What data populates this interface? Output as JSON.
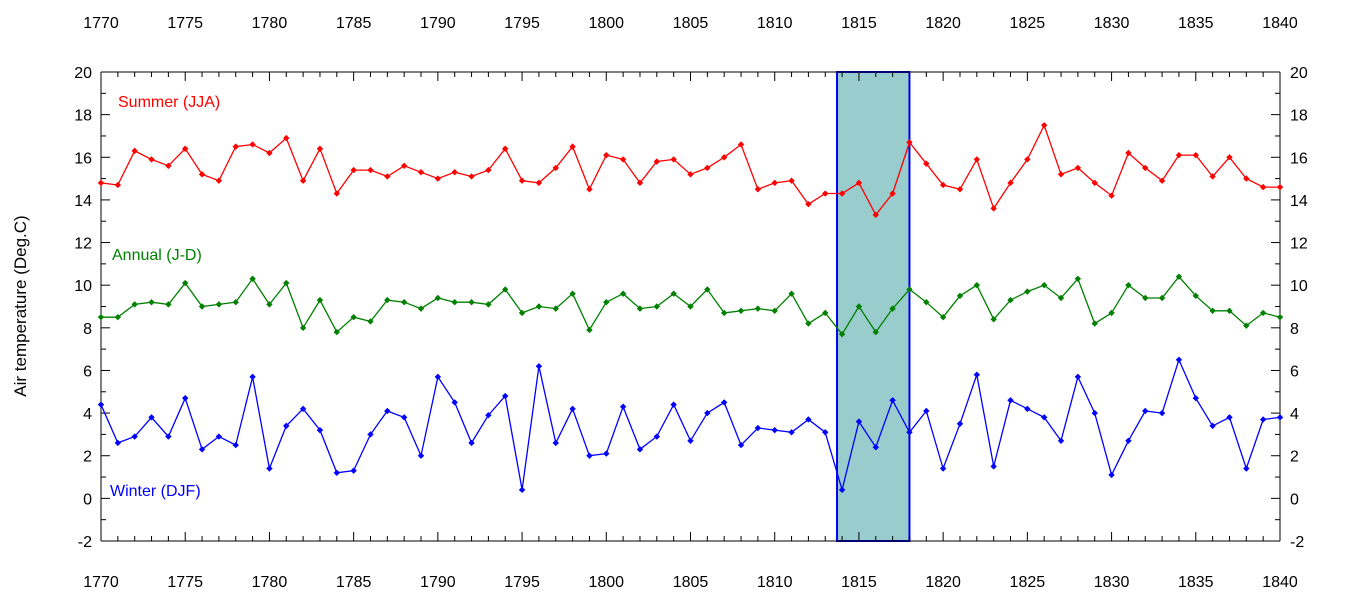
{
  "chart_data": {
    "type": "line",
    "title": "",
    "ylabel": "Air temperature (Deg.C)",
    "xlabel": "",
    "xlim": [
      1770,
      1840
    ],
    "ylim": [
      -2,
      20
    ],
    "x_ticks": [
      1770,
      1775,
      1780,
      1785,
      1790,
      1795,
      1800,
      1805,
      1810,
      1815,
      1820,
      1825,
      1830,
      1835,
      1840
    ],
    "y_ticks": [
      -2,
      0,
      2,
      4,
      6,
      8,
      10,
      12,
      14,
      16,
      18,
      20
    ],
    "highlight_band": {
      "x_start": 1813.7,
      "x_end": 1818.0,
      "fill": "#99cccc",
      "stroke": "#0000ee"
    },
    "x": [
      1770,
      1771,
      1772,
      1773,
      1774,
      1775,
      1776,
      1777,
      1778,
      1779,
      1780,
      1781,
      1782,
      1783,
      1784,
      1785,
      1786,
      1787,
      1788,
      1789,
      1790,
      1791,
      1792,
      1793,
      1794,
      1795,
      1796,
      1797,
      1798,
      1799,
      1800,
      1801,
      1802,
      1803,
      1804,
      1805,
      1806,
      1807,
      1808,
      1809,
      1810,
      1811,
      1812,
      1813,
      1814,
      1815,
      1816,
      1817,
      1818,
      1819,
      1820,
      1821,
      1822,
      1823,
      1824,
      1825,
      1826,
      1827,
      1828,
      1829,
      1830,
      1831,
      1832,
      1833,
      1834,
      1835,
      1836,
      1837,
      1838,
      1839,
      1840
    ],
    "series": [
      {
        "name": "Summer (JJA)",
        "color": "#ff0000",
        "values": [
          14.8,
          14.7,
          16.3,
          15.9,
          15.6,
          16.4,
          15.2,
          14.9,
          16.5,
          16.6,
          16.2,
          16.9,
          14.9,
          16.4,
          14.3,
          15.4,
          15.4,
          15.1,
          15.6,
          15.3,
          15.0,
          15.3,
          15.1,
          15.4,
          16.4,
          14.9,
          14.8,
          15.5,
          16.5,
          14.5,
          16.1,
          15.9,
          14.8,
          15.8,
          15.9,
          15.2,
          15.5,
          16.0,
          16.6,
          14.5,
          14.8,
          14.9,
          13.8,
          14.3,
          14.3,
          14.8,
          13.3,
          14.3,
          16.7,
          15.7,
          14.7,
          14.5,
          15.9,
          13.6,
          14.8,
          15.9,
          17.5,
          15.2,
          15.5,
          14.8,
          14.2,
          16.2,
          15.5,
          14.9,
          16.1,
          16.1,
          15.1,
          16.0,
          15.0,
          14.6,
          14.6
        ]
      },
      {
        "name": "Annual (J-D)",
        "color": "#008000",
        "values": [
          8.5,
          8.5,
          9.1,
          9.2,
          9.1,
          10.1,
          9.0,
          9.1,
          9.2,
          10.3,
          9.1,
          10.1,
          8.0,
          9.3,
          7.8,
          8.5,
          8.3,
          9.3,
          9.2,
          8.9,
          9.4,
          9.2,
          9.2,
          9.1,
          9.8,
          8.7,
          9.0,
          8.9,
          9.6,
          7.9,
          9.2,
          9.6,
          8.9,
          9.0,
          9.6,
          9.0,
          9.8,
          8.7,
          8.8,
          8.9,
          8.8,
          9.6,
          8.2,
          8.7,
          7.7,
          9.0,
          7.8,
          8.9,
          9.8,
          9.2,
          8.5,
          9.5,
          10.0,
          8.4,
          9.3,
          9.7,
          10.0,
          9.4,
          10.3,
          8.2,
          8.7,
          10.0,
          9.4,
          9.4,
          10.4,
          9.5,
          8.8,
          8.8,
          8.1,
          8.7,
          8.5
        ]
      },
      {
        "name": "Winter (DJF)",
        "color": "#0000ff",
        "values": [
          4.4,
          2.6,
          2.9,
          3.8,
          2.9,
          4.7,
          2.3,
          2.9,
          2.5,
          5.7,
          1.4,
          3.4,
          4.2,
          3.2,
          1.2,
          1.3,
          3.0,
          4.1,
          3.8,
          2.0,
          5.7,
          4.5,
          2.6,
          3.9,
          4.8,
          0.4,
          6.2,
          2.6,
          4.2,
          2.0,
          2.1,
          4.3,
          2.3,
          2.9,
          4.4,
          2.7,
          4.0,
          4.5,
          2.5,
          3.3,
          3.2,
          3.1,
          3.7,
          3.1,
          0.4,
          3.6,
          2.4,
          4.6,
          3.1,
          4.1,
          1.4,
          3.5,
          5.8,
          1.5,
          4.6,
          4.2,
          3.8,
          2.7,
          5.7,
          4.0,
          1.1,
          2.7,
          4.1,
          4.0,
          6.5,
          4.7,
          3.4,
          3.8,
          1.4,
          3.7,
          3.8
        ]
      }
    ]
  }
}
